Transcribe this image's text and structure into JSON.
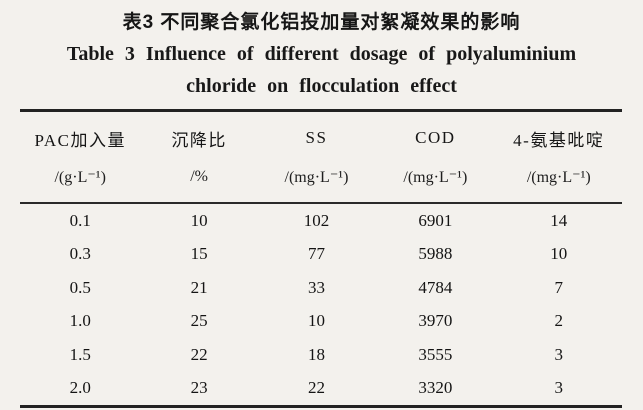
{
  "titles": {
    "chinese": "表3  不同聚合氯化铝投加量对絮凝效果的影响",
    "english_line1": "Table 3  Influence of different dosage of polyaluminium",
    "english_line2": "chloride on flocculation effect"
  },
  "table": {
    "columns": [
      {
        "name": "PAC加入量",
        "unit": "/(g·L⁻¹)"
      },
      {
        "name": "沉降比",
        "unit": "/%"
      },
      {
        "name": "SS",
        "unit": "/(mg·L⁻¹)"
      },
      {
        "name": "COD",
        "unit": "/(mg·L⁻¹)"
      },
      {
        "name": "4-氨基吡啶",
        "unit": "/(mg·L⁻¹)"
      }
    ],
    "rows": [
      [
        "0.1",
        "10",
        "102",
        "6901",
        "14"
      ],
      [
        "0.3",
        "15",
        "77",
        "5988",
        "10"
      ],
      [
        "0.5",
        "21",
        "33",
        "4784",
        "7"
      ],
      [
        "1.0",
        "25",
        "10",
        "3970",
        "2"
      ],
      [
        "1.5",
        "22",
        "18",
        "3555",
        "3"
      ],
      [
        "2.0",
        "23",
        "22",
        "3320",
        "3"
      ]
    ]
  },
  "chart_data": {
    "type": "table",
    "title": "表3 不同聚合氯化铝投加量对絮凝效果的影响 / Table 3 Influence of different dosage of polyaluminium chloride on flocculation effect",
    "columns": [
      "PAC加入量/(g·L⁻¹)",
      "沉降比/%",
      "SS/(mg·L⁻¹)",
      "COD/(mg·L⁻¹)",
      "4-氨基吡啶/(mg·L⁻¹)"
    ],
    "pac_dosage_g_per_L": [
      0.1,
      0.3,
      0.5,
      1.0,
      1.5,
      2.0
    ],
    "settling_ratio_pct": [
      10,
      15,
      21,
      25,
      22,
      23
    ],
    "SS_mg_per_L": [
      102,
      77,
      33,
      10,
      18,
      22
    ],
    "COD_mg_per_L": [
      6901,
      5988,
      4784,
      3970,
      3555,
      3320
    ],
    "aminopyridine_mg_per_L": [
      14,
      10,
      7,
      2,
      3,
      3
    ]
  },
  "colors": {
    "paper_background": "#f3f1ed",
    "ink": "#1b1b1b",
    "rule": "#222222"
  }
}
